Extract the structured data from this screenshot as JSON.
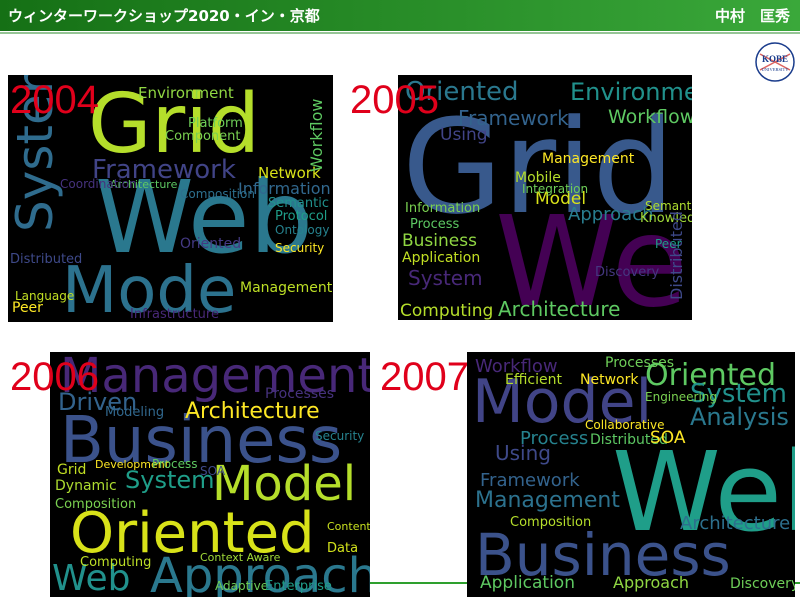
{
  "header": {
    "title": "ウィンターワークショップ2020・イン・京都",
    "author": "中村　匡秀"
  },
  "logo": {
    "name": "KOBE",
    "subtitle": "UNIVERSITY"
  },
  "clouds": [
    {
      "year": "2004",
      "words": [
        "Grid",
        "Web",
        "Mode",
        "System",
        "Framework",
        "Network",
        "Information",
        "Environment",
        "Platform",
        "Component",
        "Workflow",
        "Distributed",
        "Architecture",
        "Management",
        "Infrastructure",
        "Semantic",
        "Security",
        "Protocol",
        "Ontology",
        "Composition",
        "Oriented",
        "Peer",
        "Language",
        "Coordination"
      ]
    },
    {
      "year": "2005",
      "words": [
        "Grid",
        "Web",
        "Oriented",
        "Environment",
        "Framework",
        "Workflow",
        "Architecture",
        "Computing",
        "Business",
        "Application",
        "Approach",
        "Management",
        "Mobile",
        "Model",
        "Integration",
        "Semantic",
        "Knowledge",
        "Information",
        "Distributed",
        "System",
        "Process",
        "Discovery",
        "Using",
        "Peer"
      ]
    },
    {
      "year": "2006",
      "words": [
        "Management",
        "Business",
        "Oriented",
        "Approach",
        "Model",
        "Architecture",
        "Driven",
        "Web",
        "System",
        "Grid",
        "Dynamic",
        "Composition",
        "Processes",
        "Development",
        "Process",
        "Modeling",
        "Computing",
        "Context Aware",
        "Adaptive",
        "Enterprise",
        "Content",
        "Data",
        "Security",
        "SOA"
      ]
    },
    {
      "year": "2007",
      "words": [
        "Web",
        "Business",
        "Model",
        "Oriented",
        "System",
        "Analysis",
        "Management",
        "Framework",
        "Process",
        "Distributed",
        "SOA",
        "Architecture",
        "Application",
        "Approach",
        "Composition",
        "Workflow",
        "Efficient",
        "Network",
        "Processes",
        "Using",
        "Discovery",
        "Collaborative",
        "Engineering"
      ]
    }
  ]
}
